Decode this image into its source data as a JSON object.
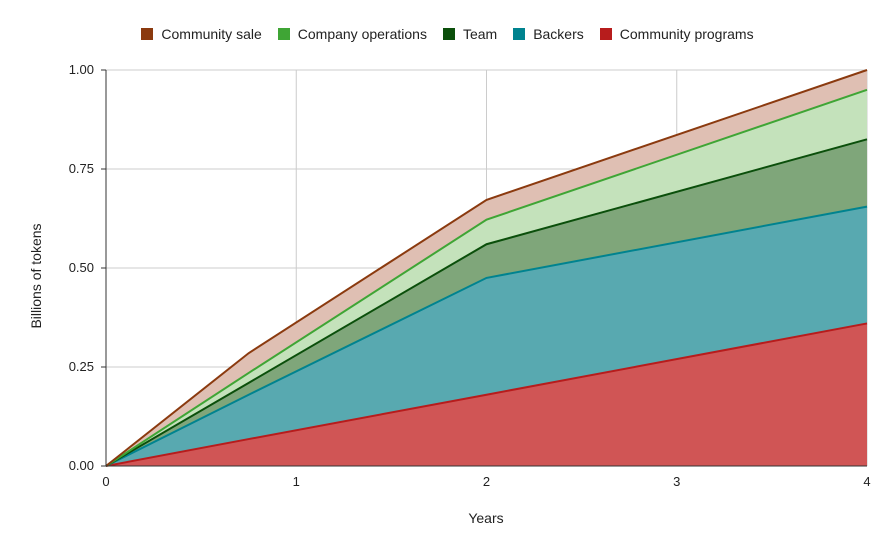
{
  "chart_data": {
    "type": "area",
    "stacked": true,
    "xlabel": "Years",
    "ylabel": "Billions of tokens",
    "xlim": [
      0,
      4
    ],
    "ylim": [
      0,
      1
    ],
    "x_ticks": [
      "0",
      "1",
      "2",
      "3",
      "4"
    ],
    "y_ticks": [
      "0.00",
      "0.25",
      "0.50",
      "0.75",
      "1.00"
    ],
    "grid": true,
    "legend_position": "top",
    "x": [
      0,
      0.75,
      2,
      4
    ],
    "series": [
      {
        "name": "Community programs",
        "color": "#b71c1c",
        "fill": "#d05555",
        "values": [
          0,
          0.068,
          0.18,
          0.36
        ]
      },
      {
        "name": "Backers",
        "color": "#00838f",
        "fill": "#58a9b0",
        "values": [
          0,
          0.112,
          0.295,
          0.295
        ]
      },
      {
        "name": "Team",
        "color": "#0b4f0b",
        "fill": "#7fa67a",
        "values": [
          0,
          0.03,
          0.085,
          0.17
        ]
      },
      {
        "name": "Company operations",
        "color": "#3fa535",
        "fill": "#c4e2bb",
        "values": [
          0,
          0.025,
          0.062,
          0.125
        ]
      },
      {
        "name": "Community sale",
        "color": "#8b3a0f",
        "fill": "#dfbfb3",
        "values": [
          0,
          0.05,
          0.05,
          0.05
        ]
      }
    ],
    "legend_order": [
      "Community sale",
      "Company operations",
      "Team",
      "Backers",
      "Community programs"
    ]
  }
}
